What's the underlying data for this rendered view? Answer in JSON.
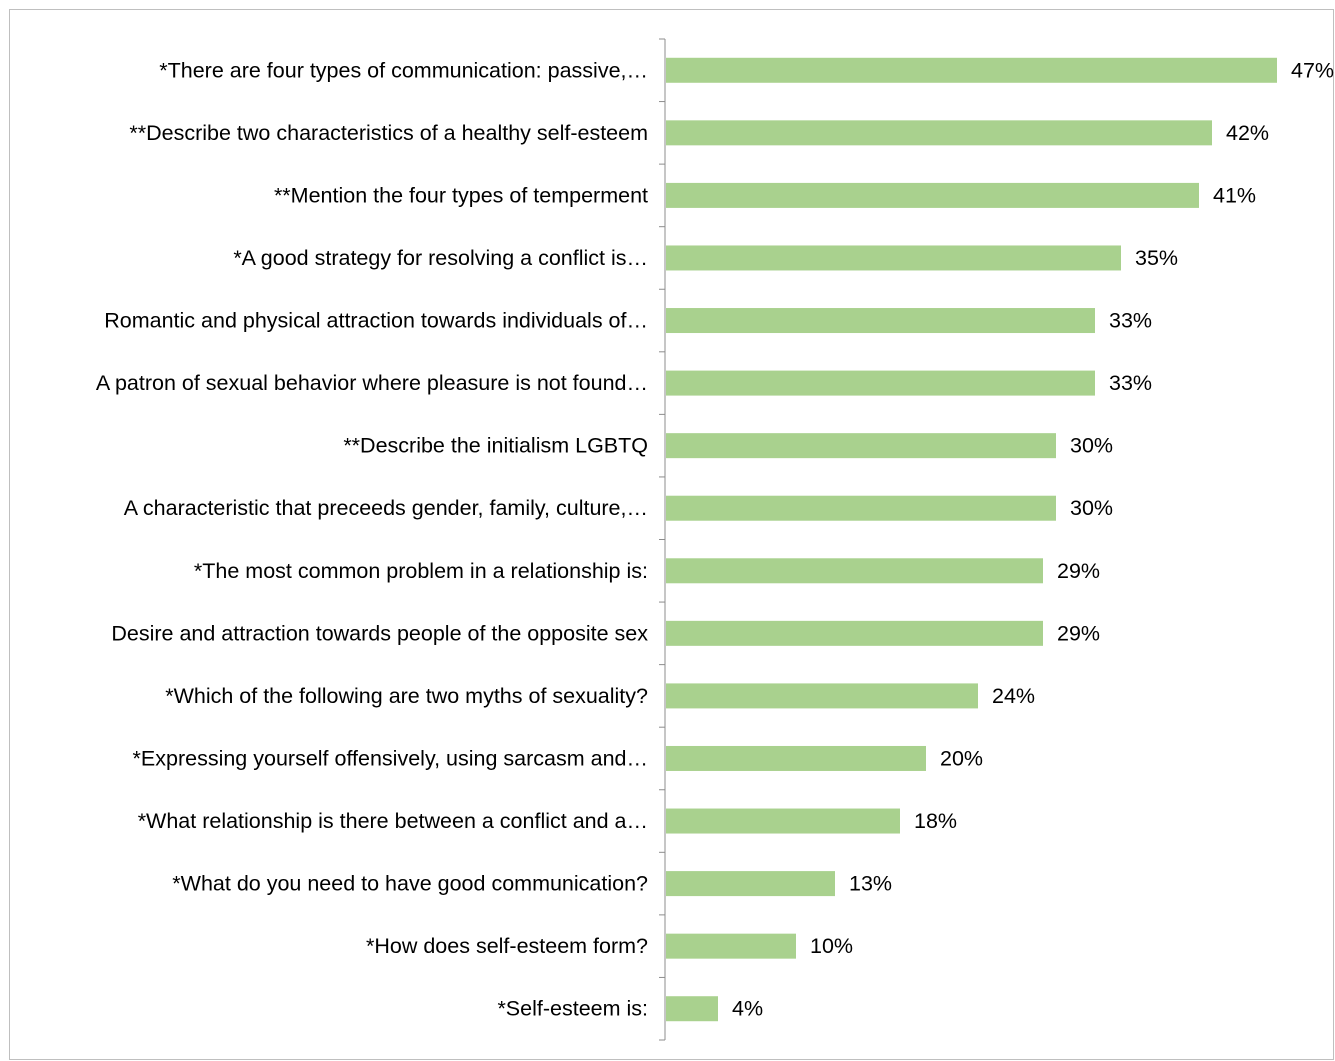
{
  "chart_data": {
    "type": "bar",
    "orientation": "horizontal",
    "title": "",
    "xlabel": "",
    "ylabel": "",
    "xlim": [
      0,
      47
    ],
    "grid": false,
    "legend": "none",
    "colors": {
      "bar": "#a9d18e",
      "axis": "#8c8c8c",
      "frame": "#bfbfbf"
    },
    "categories": [
      "*There are four types of communication: passive,…",
      "**Describe two characteristics of a healthy self-esteem",
      "**Mention the four types of temperment",
      "*A good strategy for resolving a conflict is…",
      "Romantic and physical attraction towards individuals of…",
      "A patron of sexual behavior where pleasure is not found…",
      "**Describe the initialism LGBTQ",
      "A characteristic that preceeds gender, family, culture,…",
      "*The most common problem in a relationship is:",
      "Desire and attraction towards people of the opposite sex",
      "*Which of the following are two myths of sexuality?",
      "*Expressing yourself offensively, using sarcasm and…",
      "*What relationship is there between a conflict and a…",
      "*What do you need to have good communication?",
      "*How does self-esteem form?",
      "*Self-esteem is:"
    ],
    "values": [
      47,
      42,
      41,
      35,
      33,
      33,
      30,
      30,
      29,
      29,
      24,
      20,
      18,
      13,
      10,
      4
    ],
    "value_labels": [
      "47%",
      "42%",
      "41%",
      "35%",
      "33%",
      "33%",
      "30%",
      "30%",
      "29%",
      "29%",
      "24%",
      "20%",
      "18%",
      "13%",
      "10%",
      "4%"
    ]
  }
}
